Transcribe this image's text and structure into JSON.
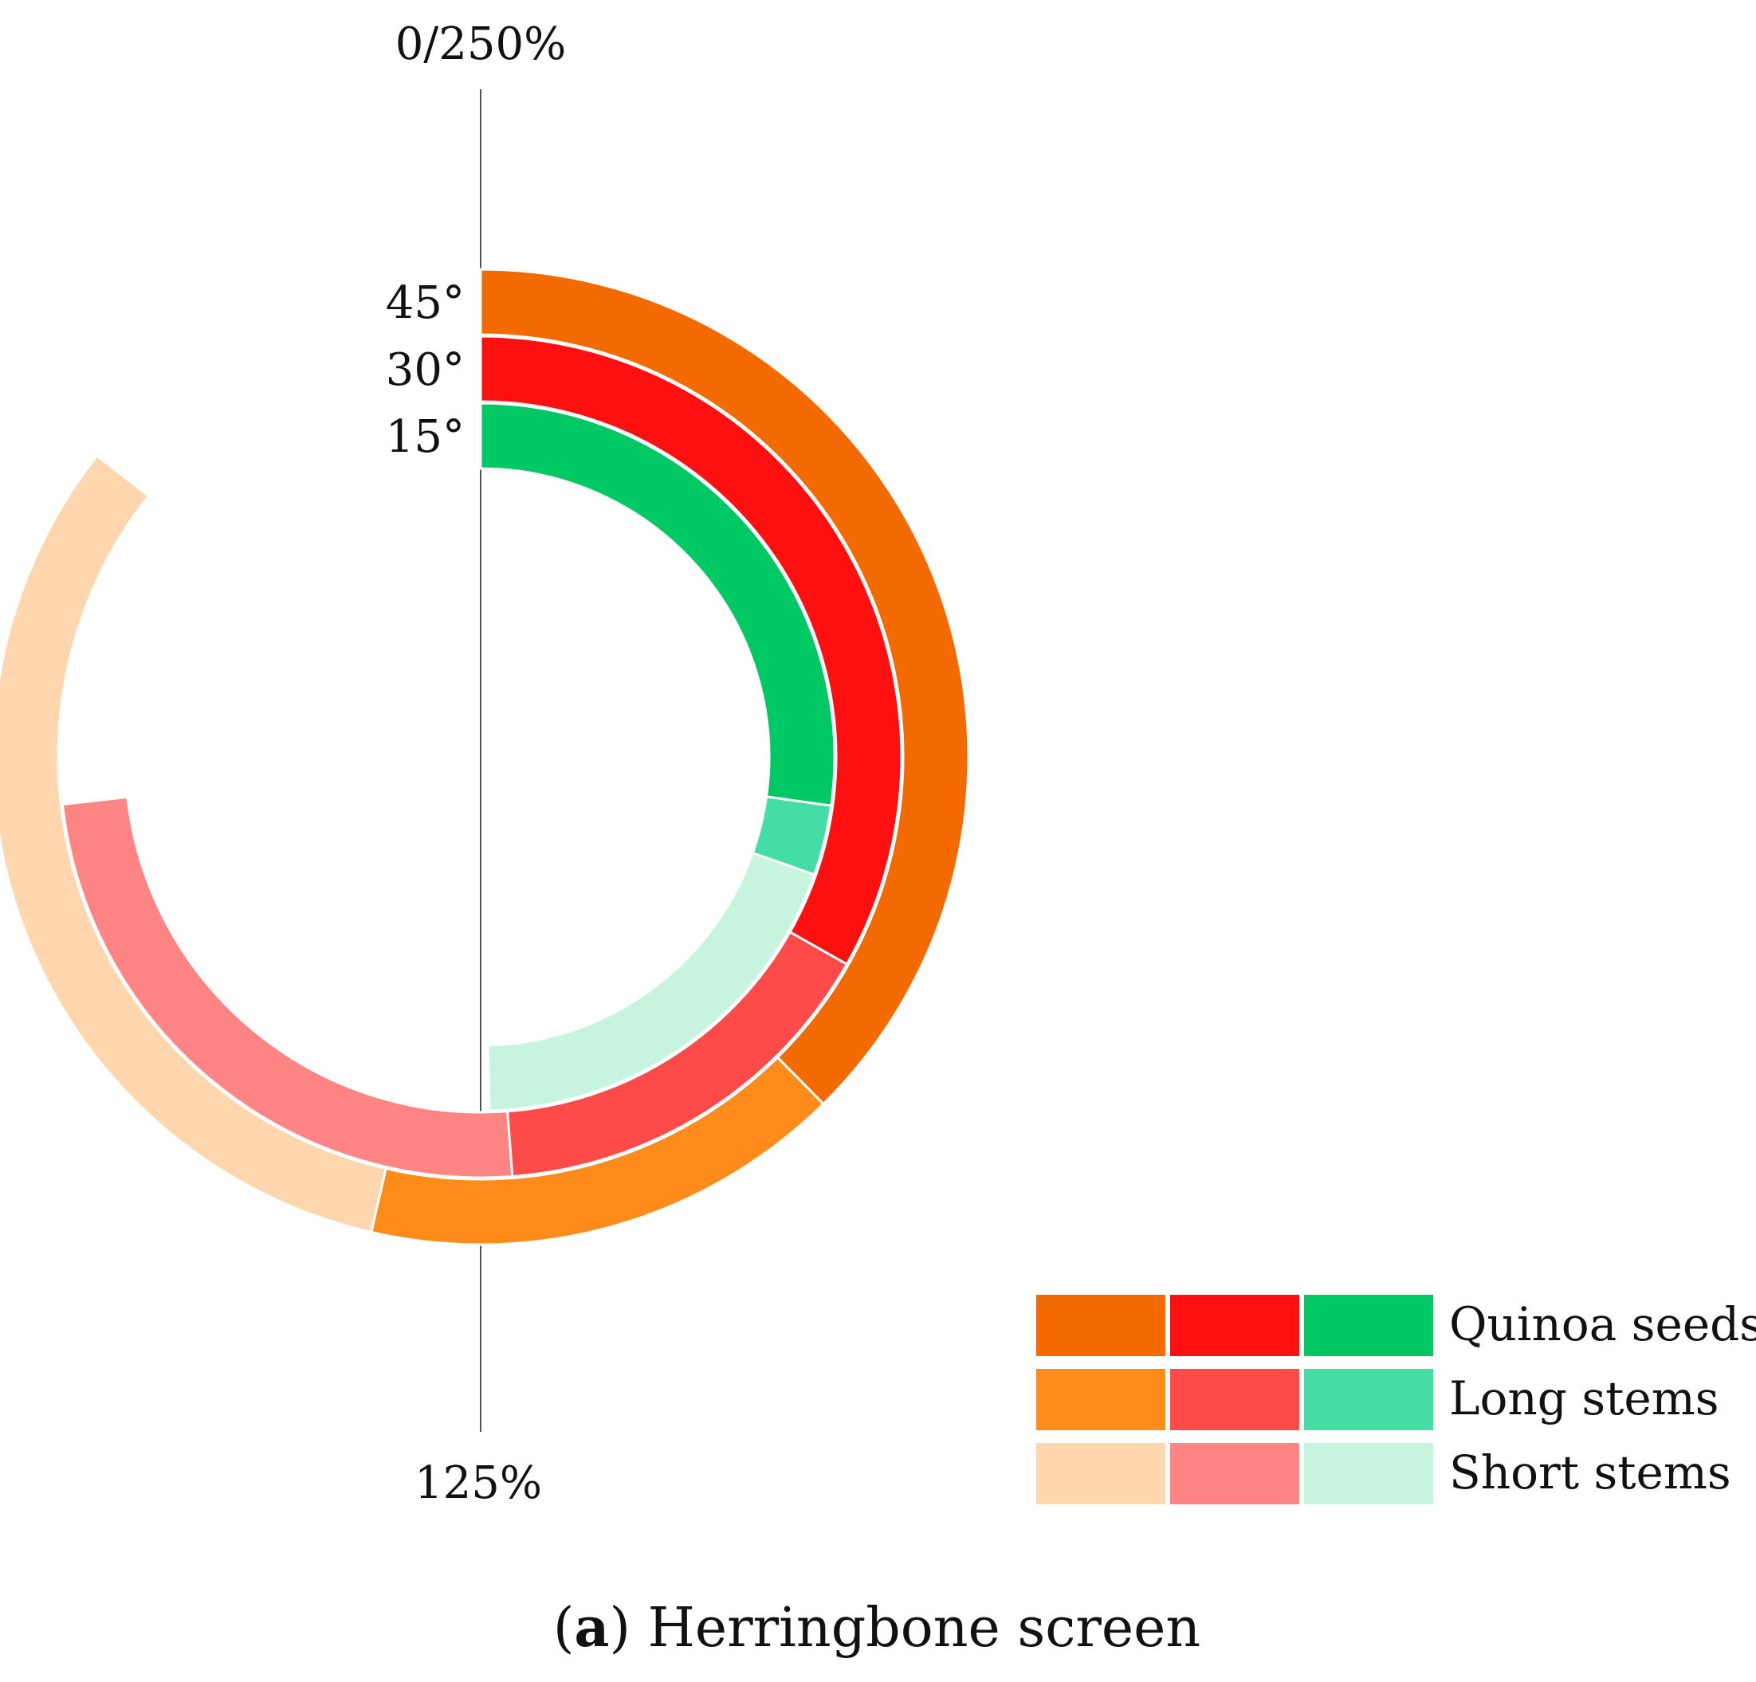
{
  "chart_data": {
    "type": "radial-bar",
    "full_scale_percent": 250,
    "scale_labels": {
      "top": "0/250%",
      "bottom": "125%"
    },
    "ring_labels": [
      "45°",
      "30°",
      "15°"
    ],
    "categories": [
      "Quinoa seeds",
      "Long stems",
      "Short stems"
    ],
    "rings": [
      {
        "angle": "45°",
        "colors": [
          "#F26A00",
          "#FF8C1A",
          "#FFD6AD"
        ],
        "segments": [
          {
            "category": "Quinoa seeds",
            "value": 94
          },
          {
            "category": "Long stems",
            "value": 40
          },
          {
            "category": "Short stems",
            "value": 80
          }
        ]
      },
      {
        "angle": "30°",
        "colors": [
          "#FF1010",
          "#FF4A4A",
          "#FF8585"
        ],
        "segments": [
          {
            "category": "Quinoa seeds",
            "value": 83
          },
          {
            "category": "Long stems",
            "value": 39
          },
          {
            "category": "Short stems",
            "value": 61
          }
        ]
      },
      {
        "angle": "15°",
        "colors": [
          "#00C865",
          "#44DDA5",
          "#C6F4DE"
        ],
        "segments": [
          {
            "category": "Quinoa seeds",
            "value": 68
          },
          {
            "category": "Long stems",
            "value": 8
          },
          {
            "category": "Short stems",
            "value": 48
          }
        ]
      }
    ],
    "legend": {
      "position": "bottom-right",
      "entries": [
        {
          "label": "Quinoa seeds",
          "colors": [
            "#F26A00",
            "#FF1010",
            "#00C865"
          ]
        },
        {
          "label": "Long stems",
          "colors": [
            "#FF8C1A",
            "#FF4A4A",
            "#44DDA5"
          ]
        },
        {
          "label": "Short stems",
          "colors": [
            "#FFD6AD",
            "#FF8585",
            "#C6F4DE"
          ]
        }
      ]
    }
  },
  "caption": {
    "letter": "a",
    "text": "Herringbone screen"
  }
}
